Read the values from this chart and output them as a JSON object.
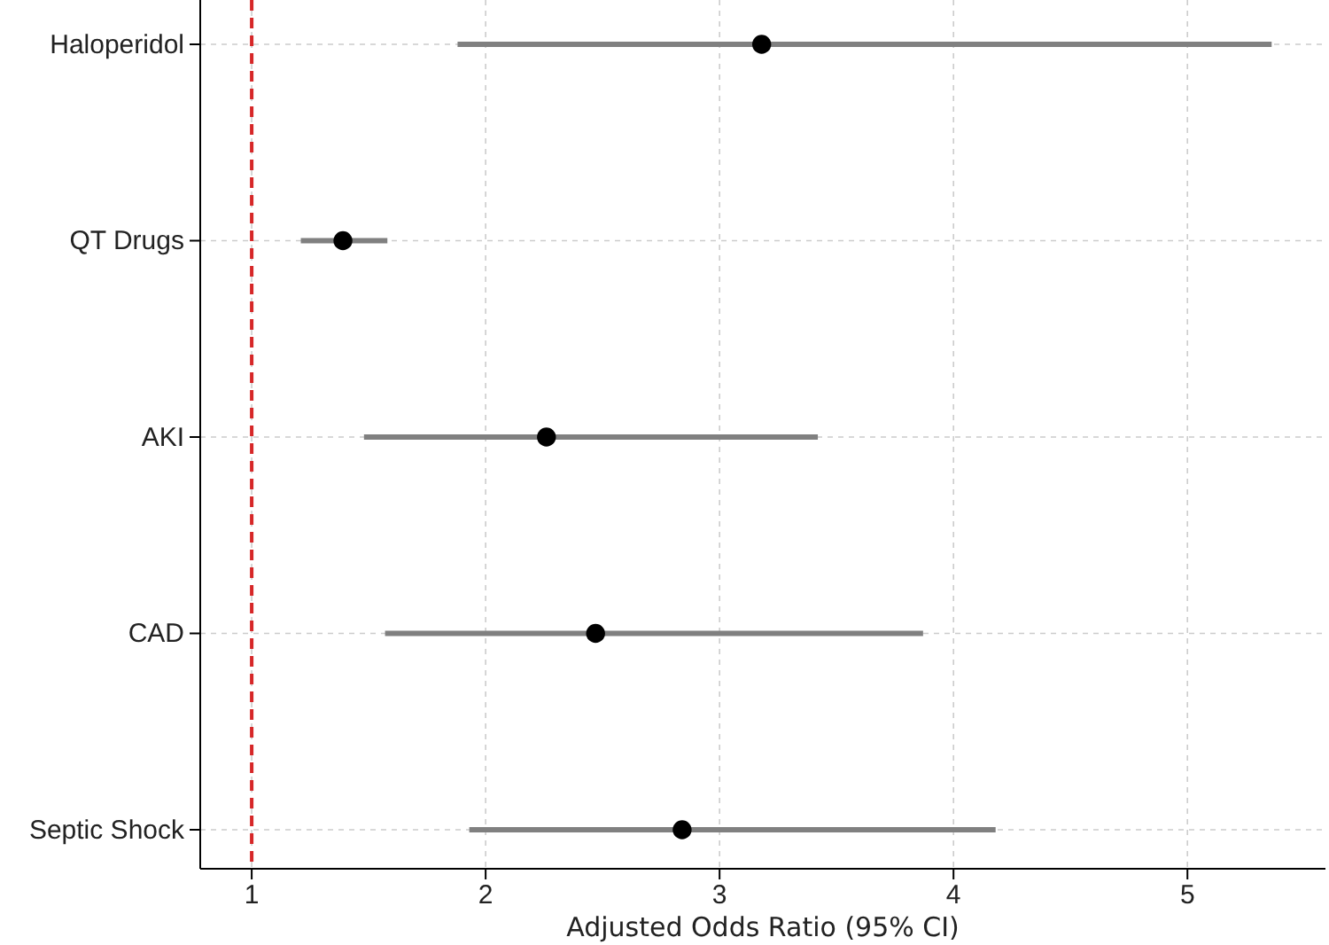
{
  "chart_data": {
    "type": "scatter",
    "orientation": "horizontal",
    "xlabel": "Adjusted Odds Ratio (95% CI)",
    "categories": [
      "Haloperidol",
      "QT Drugs",
      "AKI",
      "CAD",
      "Septic Shock"
    ],
    "values": [
      3.18,
      1.39,
      2.26,
      2.47,
      2.84
    ],
    "errors": [
      [
        1.88,
        5.36
      ],
      [
        1.21,
        1.58
      ],
      [
        1.48,
        3.42
      ],
      [
        1.57,
        3.87
      ],
      [
        1.93,
        4.18
      ]
    ],
    "color": "#000000",
    "marker": "circle",
    "grid": true,
    "xlim": [
      0.78,
      5.59
    ],
    "xticks": [
      1,
      2,
      3,
      4,
      5
    ],
    "ref_lines": [
      {
        "axis": "x",
        "value": 1,
        "label": null,
        "color": "#d62728",
        "line_style": "dashed"
      }
    ]
  }
}
